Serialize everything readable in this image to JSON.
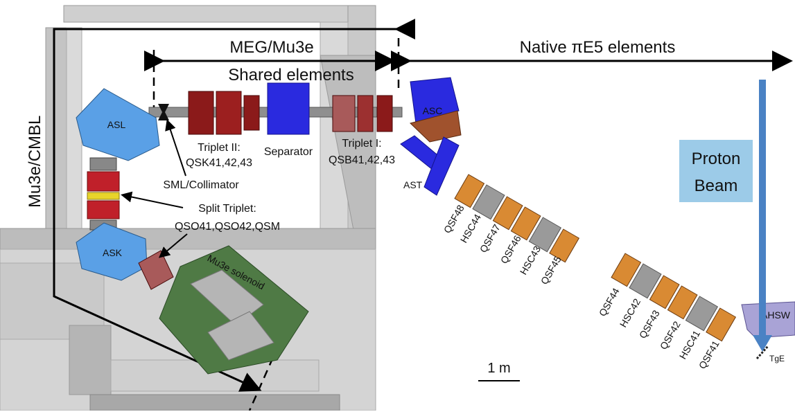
{
  "title_top": "MEG/Mu3e",
  "title_shared": "Shared elements",
  "title_native": "Native πE5 elements",
  "side_label": "Mu3e/CMBL",
  "proton_beam": {
    "line1": "Proton",
    "line2": "Beam"
  },
  "scale_label": "1 m",
  "labels": {
    "asl": "ASL",
    "ask": "ASK",
    "asc": "ASC",
    "ast": "AST",
    "ahsw": "AHSW",
    "tge": "TgE",
    "triplet2": "Triplet II:",
    "triplet2_sub": "QSK41,42,43",
    "separator": "Separator",
    "triplet1": "Triplet I:",
    "triplet1_sub": "QSB41,42,43",
    "sml": "SML/Collimator",
    "split": "Split Triplet:",
    "split_sub": "QSO41,QSO42,QSM",
    "solenoid": "Mu3e solenoid"
  },
  "upper_chain": [
    "QSF48",
    "HSC44",
    "QSF47",
    "QSF46",
    "HSC43",
    "QSF45"
  ],
  "lower_chain": [
    "QSF44",
    "HSC42",
    "QSF43",
    "QSF42",
    "HSC41",
    "QSF41"
  ],
  "colors": {
    "wall": "#d6d6d6",
    "wall_dark": "#a9a9a9",
    "quad_red": "#8b1a1a",
    "separator_blue": "#2a2adf",
    "dipole_blue": "#4a90d9",
    "solenoid_green": "#4f7a45",
    "proton_arrow": "#4a82c4",
    "proton_box": "#9ccbe8",
    "ahsw_purple": "#a9a3d6"
  }
}
